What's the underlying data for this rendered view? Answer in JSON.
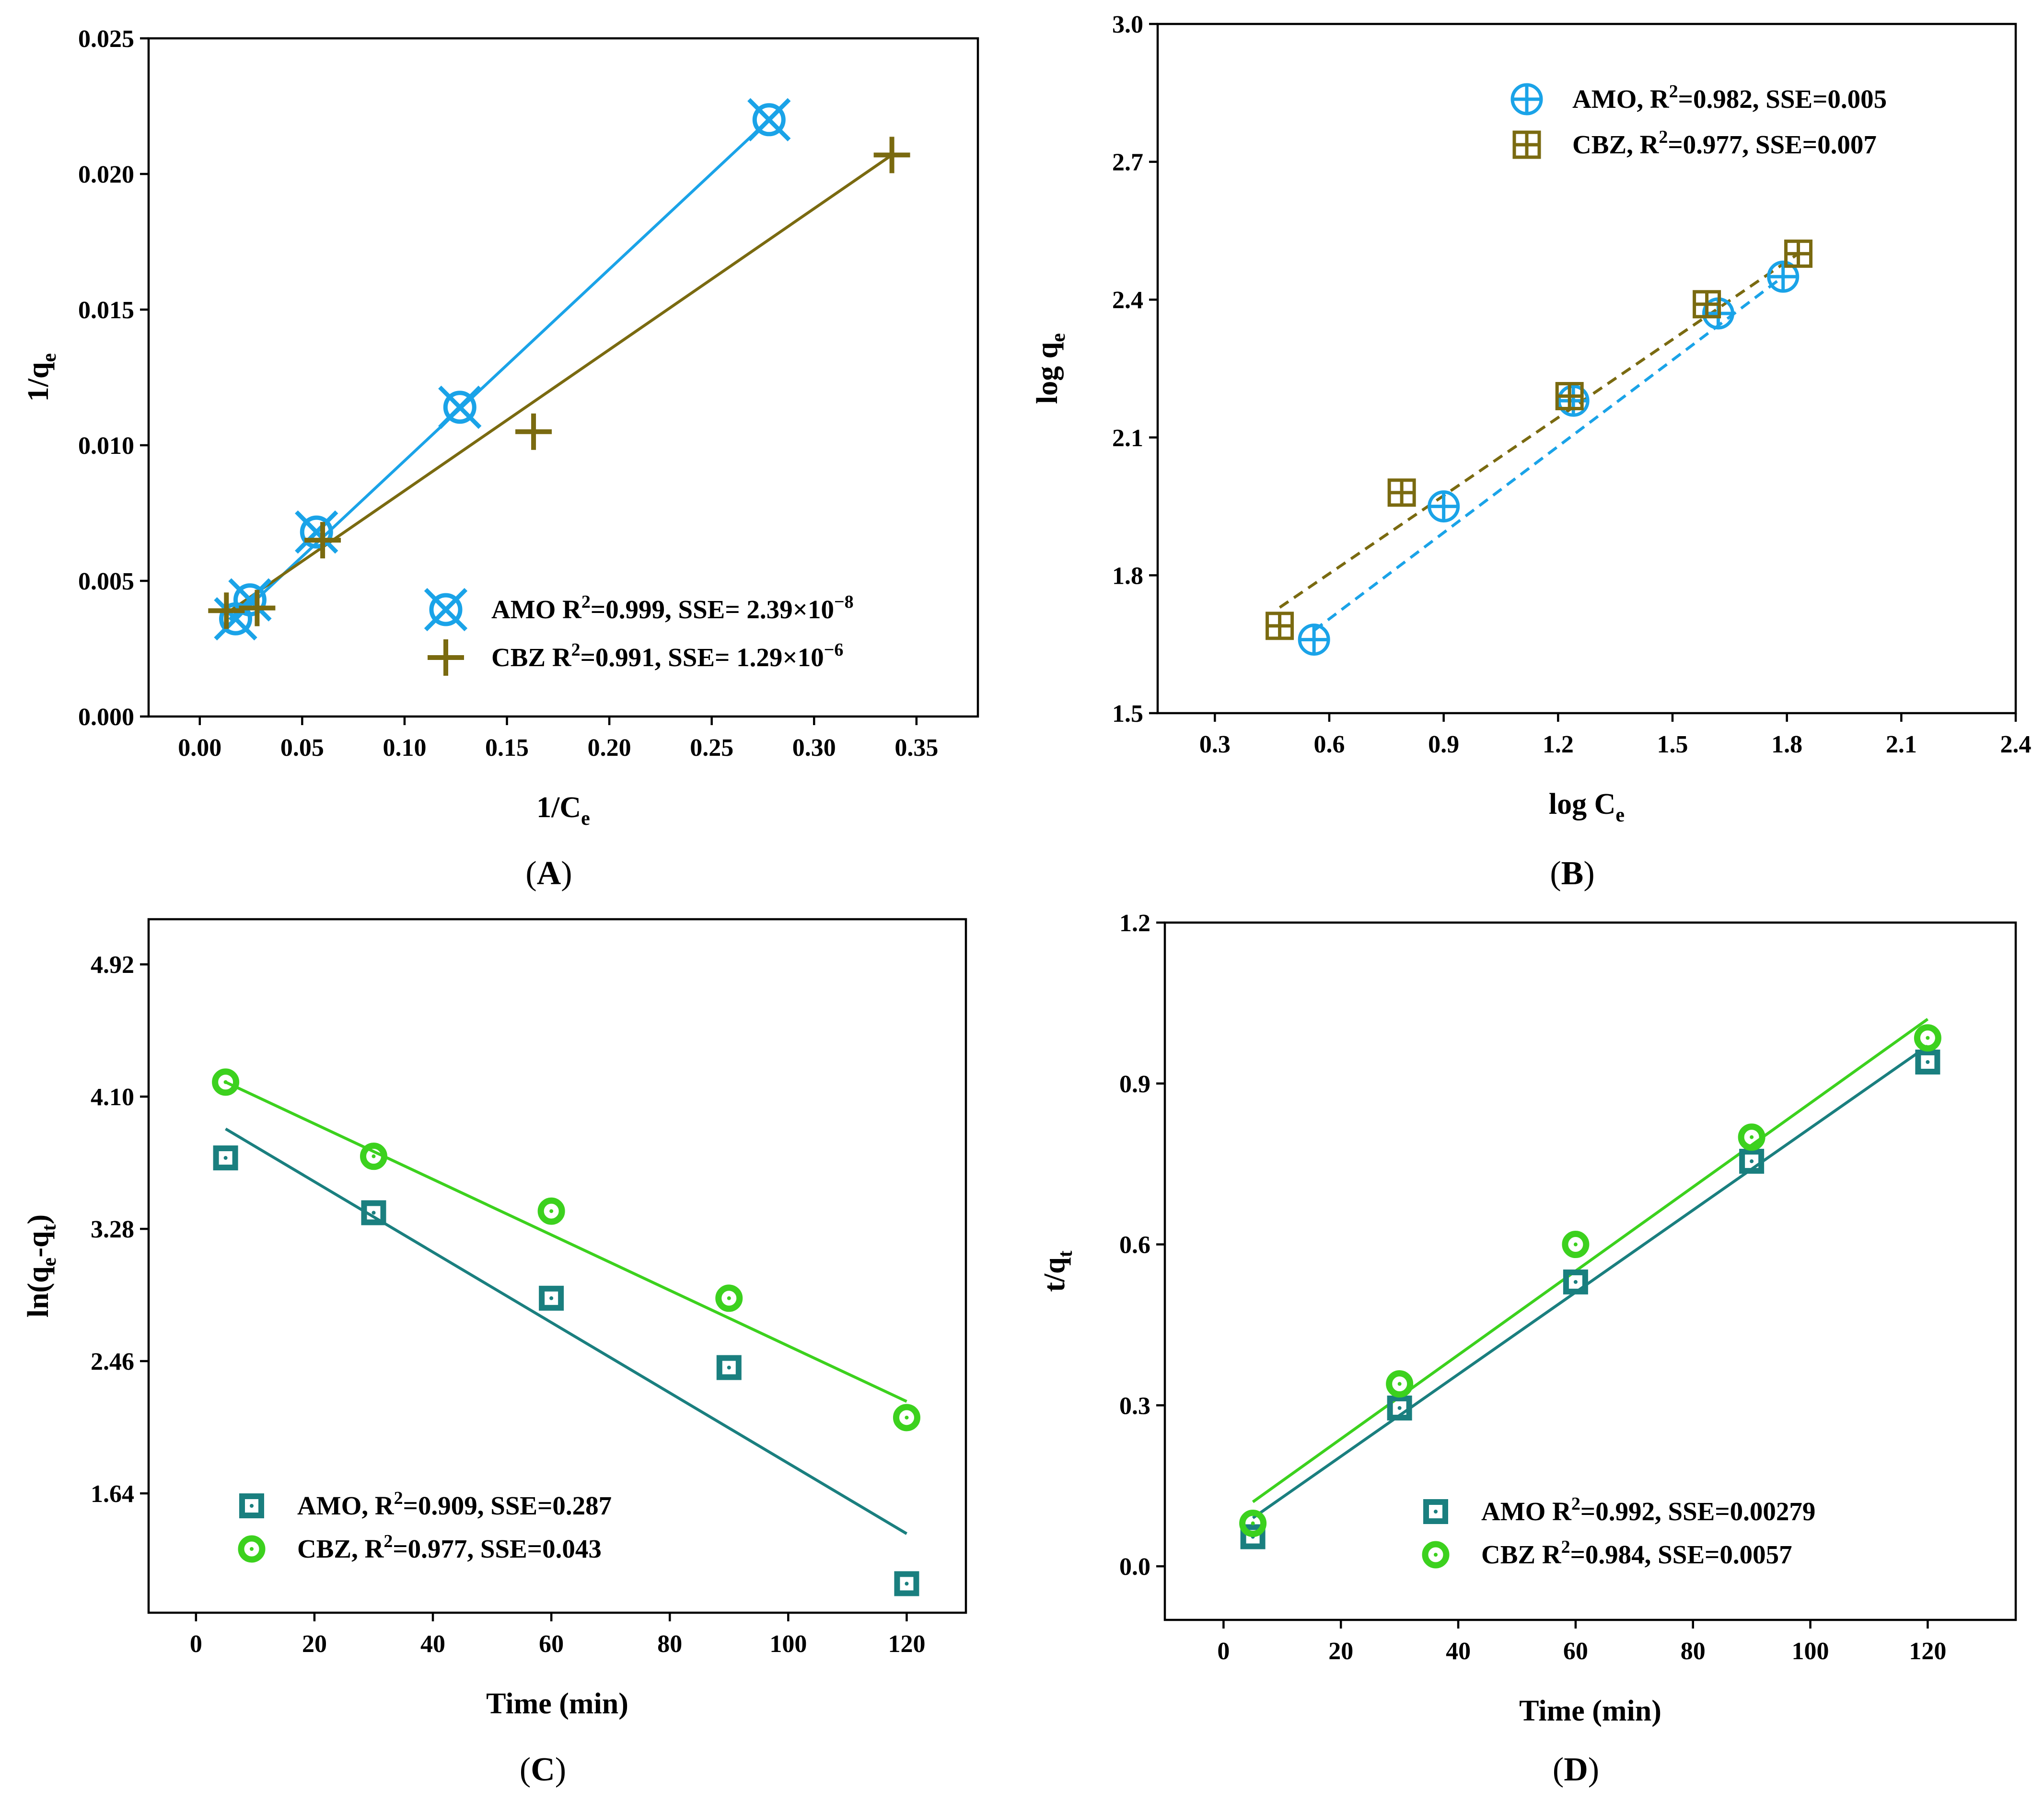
{
  "chart_data": [
    {
      "id": "A",
      "type": "scatter",
      "panel_label": "A",
      "xlabel": "1/C",
      "xlabel_sub": "e",
      "ylabel": "1/q",
      "ylabel_sub": "e",
      "xlim": [
        -0.025,
        0.38
      ],
      "ylim": [
        0,
        0.025
      ],
      "xticks": [
        0.0,
        0.05,
        0.1,
        0.15,
        0.2,
        0.25,
        0.3,
        0.35
      ],
      "xtick_labels": [
        "0.00",
        "0.05",
        "0.10",
        "0.15",
        "0.20",
        "0.25",
        "0.30",
        "0.35"
      ],
      "yticks": [
        0.0,
        0.005,
        0.01,
        0.015,
        0.02,
        0.025
      ],
      "ytick_labels": [
        "0.000",
        "0.005",
        "0.010",
        "0.015",
        "0.020",
        "0.025"
      ],
      "legend_position": "lower-right",
      "series": [
        {
          "name": "AMO",
          "marker": "x-circle",
          "color": "#1aa3e8",
          "x": [
            0.0175,
            0.0245,
            0.057,
            0.127,
            0.278
          ],
          "y": [
            0.0036,
            0.0043,
            0.0068,
            0.0114,
            0.022
          ],
          "fit": {
            "x": [
              0.0175,
              0.278
            ],
            "y": [
              0.0036,
              0.022
            ],
            "style": "solid"
          },
          "legend_parts": [
            "AMO  R",
            "2",
            "=0.999,   SSE= 2.39×10",
            "−8",
            ""
          ]
        },
        {
          "name": "CBZ",
          "marker": "plus",
          "color": "#7a6a10",
          "x": [
            0.013,
            0.028,
            0.06,
            0.163,
            0.338
          ],
          "y": [
            0.0039,
            0.004,
            0.0065,
            0.0105,
            0.0207
          ],
          "fit": {
            "x": [
              0.013,
              0.338
            ],
            "y": [
              0.0038,
              0.0207
            ],
            "style": "solid"
          },
          "legend_parts": [
            "CBZ    R",
            "2",
            "=0.991,   SSE= 1.29×10",
            "−6",
            ""
          ]
        }
      ]
    },
    {
      "id": "B",
      "type": "scatter",
      "panel_label": "B",
      "xlabel": "log C",
      "xlabel_sub": "e",
      "ylabel": "log q",
      "ylabel_sub": "e",
      "xlim": [
        0.15,
        2.4
      ],
      "ylim": [
        1.5,
        3.0
      ],
      "xticks": [
        0.3,
        0.6,
        0.9,
        1.2,
        1.5,
        1.8,
        2.1,
        2.4
      ],
      "xtick_labels": [
        "0.3",
        "0.6",
        "0.9",
        "1.2",
        "1.5",
        "1.8",
        "2.1",
        "2.4"
      ],
      "yticks": [
        1.5,
        1.8,
        2.1,
        2.4,
        2.7,
        3.0
      ],
      "ytick_labels": [
        "1.5",
        "1.8",
        "2.1",
        "2.4",
        "2.7",
        "3.0"
      ],
      "legend_position": "top-right",
      "series": [
        {
          "name": "AMO",
          "marker": "plus-circle",
          "color": "#1aa3e8",
          "x": [
            0.56,
            0.9,
            1.24,
            1.62,
            1.79
          ],
          "y": [
            1.66,
            1.95,
            2.18,
            2.37,
            2.45
          ],
          "fit": {
            "x": [
              0.56,
              1.79
            ],
            "y": [
              1.68,
              2.45
            ],
            "style": "dashed"
          },
          "legend_parts": [
            "AMO,  R",
            "2",
            "=0.982,  SSE=0.005",
            "",
            ""
          ]
        },
        {
          "name": "CBZ",
          "marker": "plus-square",
          "color": "#7a6a10",
          "x": [
            0.47,
            0.79,
            1.23,
            1.59,
            1.83
          ],
          "y": [
            1.69,
            1.98,
            2.19,
            2.39,
            2.5
          ],
          "fit": {
            "x": [
              0.47,
              1.83
            ],
            "y": [
              1.73,
              2.5
            ],
            "style": "dashed"
          },
          "legend_parts": [
            "CBZ,   R",
            "2",
            "=0.977,   SSE=0.007",
            "",
            ""
          ]
        }
      ]
    },
    {
      "id": "C",
      "type": "scatter",
      "panel_label": "C",
      "xlabel": "Time (min)",
      "ylabel_parts": [
        "ln(q",
        "e",
        "-q",
        "t",
        ")"
      ],
      "xlim": [
        -8,
        130
      ],
      "ylim": [
        0.9,
        5.2
      ],
      "xticks": [
        0,
        20,
        40,
        60,
        80,
        100,
        120
      ],
      "xtick_labels": [
        "0",
        "20",
        "40",
        "60",
        "80",
        "100",
        "120"
      ],
      "yticks": [
        1.64,
        2.46,
        3.28,
        4.1,
        4.92
      ],
      "ytick_labels": [
        "1.64",
        "2.46",
        "3.28",
        "4.10",
        "4.92"
      ],
      "legend_position": "lower-left",
      "series": [
        {
          "name": "AMO",
          "marker": "dot-square",
          "color": "#1a7f7f",
          "x": [
            5,
            30,
            60,
            90,
            120
          ],
          "y": [
            3.72,
            3.38,
            2.85,
            2.42,
            1.08
          ],
          "fit": {
            "x": [
              5,
              120
            ],
            "y": [
              3.9,
              1.39
            ],
            "style": "solid"
          },
          "legend_parts": [
            "AMO, R",
            "2",
            "=0.909,  SSE=0.287",
            "",
            ""
          ]
        },
        {
          "name": "CBZ",
          "marker": "dot-circle",
          "color": "#3cd11e",
          "x": [
            5,
            30,
            60,
            90,
            120
          ],
          "y": [
            4.19,
            3.73,
            3.39,
            2.85,
            2.11
          ],
          "fit": {
            "x": [
              5,
              120
            ],
            "y": [
              4.19,
              2.21
            ],
            "style": "solid"
          },
          "legend_parts": [
            "CBZ,   R",
            "2",
            "=0.977,  SSE=0.043",
            "",
            ""
          ]
        }
      ]
    },
    {
      "id": "D",
      "type": "scatter",
      "panel_label": "D",
      "xlabel": "Time (min)",
      "ylabel_parts": [
        "t/q",
        "t",
        "",
        "",
        ""
      ],
      "xlim": [
        -10,
        135
      ],
      "ylim": [
        -0.1,
        1.2
      ],
      "xticks": [
        0,
        20,
        40,
        60,
        80,
        100,
        120
      ],
      "xtick_labels": [
        "0",
        "20",
        "40",
        "60",
        "80",
        "100",
        "120"
      ],
      "yticks": [
        0.0,
        0.3,
        0.6,
        0.9,
        1.2
      ],
      "ytick_labels": [
        "0.0",
        "0.3",
        "0.6",
        "0.9",
        "1.2"
      ],
      "legend_position": "lower-right",
      "series": [
        {
          "name": "AMO",
          "marker": "dot-square",
          "color": "#1a7f7f",
          "x": [
            5,
            30,
            60,
            90,
            120
          ],
          "y": [
            0.055,
            0.295,
            0.53,
            0.755,
            0.94
          ],
          "fit": {
            "x": [
              5,
              120
            ],
            "y": [
              0.09,
              0.97
            ],
            "style": "solid"
          },
          "legend_parts": [
            "AMO  R",
            "2",
            "=0.992,  SSE=0.00279",
            "",
            ""
          ]
        },
        {
          "name": "CBZ",
          "marker": "dot-circle",
          "color": "#3cd11e",
          "x": [
            5,
            30,
            60,
            90,
            120
          ],
          "y": [
            0.08,
            0.34,
            0.6,
            0.8,
            0.985
          ],
          "fit": {
            "x": [
              5,
              120
            ],
            "y": [
              0.12,
              1.02
            ],
            "style": "solid"
          },
          "legend_parts": [
            "CBZ    R",
            "2",
            "=0.984,  SSE=0.0057",
            "",
            ""
          ]
        }
      ]
    }
  ]
}
